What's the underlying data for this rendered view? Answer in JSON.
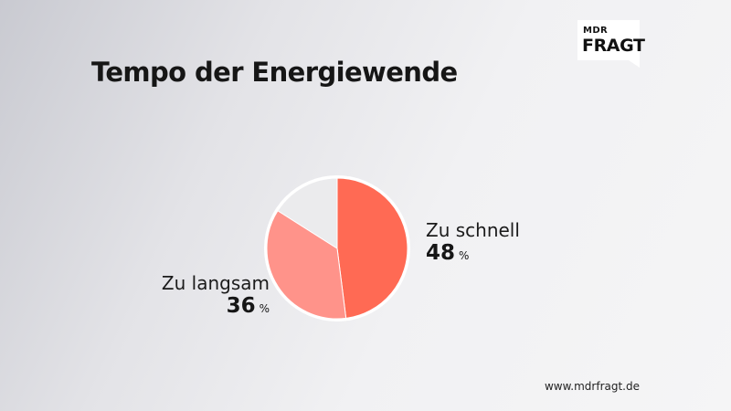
{
  "header": {
    "title": "Tempo der Energiewende"
  },
  "logo": {
    "top": "MDR",
    "bottom": "FRAGT"
  },
  "footer": {
    "url": "www.mdrfragt.de"
  },
  "chart_data": {
    "type": "pie",
    "title": "Tempo der Energiewende",
    "unit": "%",
    "slices": [
      {
        "label": "Zu schnell",
        "value": 48,
        "color": "#ff6a54"
      },
      {
        "label": "Zu langsam",
        "value": 36,
        "color": "#ff938a"
      },
      {
        "label": "",
        "value": 16,
        "color": "#ebebed"
      }
    ],
    "labels_shown": [
      {
        "label": "Zu schnell",
        "value": "48",
        "unit": "%"
      },
      {
        "label": "Zu langsam",
        "value": "36",
        "unit": "%"
      }
    ]
  }
}
